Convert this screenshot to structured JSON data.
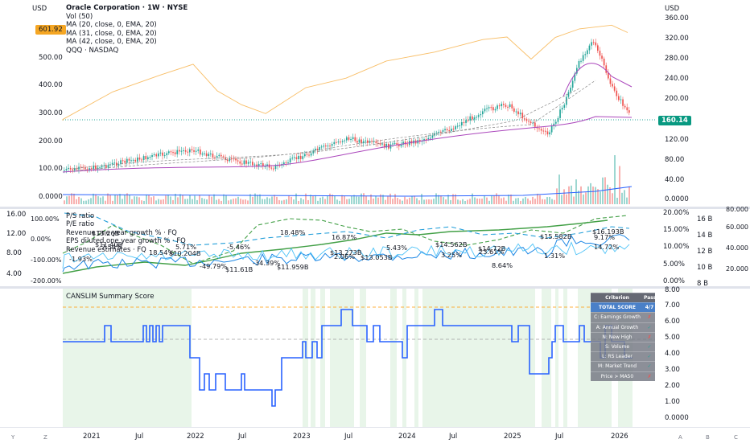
{
  "top_left_currency": "USD",
  "top_right_currency": "USD",
  "price_badge_left": "601.92",
  "price_badge_right": "160.14",
  "legend_main": {
    "title": "Oracle Corporation · 1W · NYSE",
    "lines": [
      "Vol (50)",
      "MA (20, close, 0, EMA, 20)",
      "MA (31, close, 0, EMA, 20)",
      "MA (42, close, 0, EMA, 20)",
      "QQQ · NASDAQ"
    ]
  },
  "left_axis_main": [
    "500.00",
    "400.00",
    "300.00",
    "200.00",
    "100.00",
    "0.0000"
  ],
  "right_axis_main": [
    "360.00",
    "320.00",
    "280.00",
    "240.00",
    "200.00",
    "160.00",
    "120.00",
    "80.00",
    "40.00",
    "0.0000"
  ],
  "legend_fund": {
    "lines": [
      "P/S ratio",
      "P/E ratio",
      "Revenue one year growth % · FQ",
      "EPS diluted one year growth % · FQ",
      "Revenue estimates · FQ"
    ]
  },
  "fund_left_axis_a": [
    "16.00",
    "12.00",
    "8.00",
    "4.00"
  ],
  "fund_left_axis_b": [
    "100.00%",
    "0.00%",
    "-100.00%",
    "-200.00%"
  ],
  "fund_right_axis_a": [
    "20.00%",
    "15.00%",
    "10.00%",
    "5.00%",
    "0.00%"
  ],
  "fund_right_axis_b": [
    "16 B",
    "14 B",
    "12 B",
    "10 B",
    "8 B"
  ],
  "fund_right_axis_c": [
    "80.000",
    "60.000",
    "40.000",
    "20.000"
  ],
  "fund_annotations": [
    "$13.26B",
    "$11.40B",
    "-1.93%",
    "7.54%",
    "18.54%",
    "5.71%",
    "$10.204B",
    "-49.79%",
    "$11.61B",
    "-5.46%",
    "-34.39%",
    "$11.959B",
    "18.48%",
    "2.06%",
    "$13.273B",
    "16.87%",
    "$13.053B",
    "5.43%",
    "$14.562B",
    "3.25%",
    "$14.72B",
    "23.61%",
    "8.64%",
    "$15.582B",
    "1.31%",
    "$16.193B",
    "9.17%",
    "14.72%"
  ],
  "canslim": {
    "title": "CANSLIM Summary Score",
    "right_axis": [
      "8.00",
      "7.00",
      "6.00",
      "5.00",
      "4.00",
      "3.00",
      "2.00",
      "1.00",
      "0.0000"
    ],
    "table": {
      "header": [
        "Criterion",
        "Pass"
      ],
      "total": [
        "TOTAL SCORE",
        "4/7"
      ],
      "rows": [
        [
          "C: Earnings Growth",
          "✗"
        ],
        [
          "A: Annual Growth",
          "✓"
        ],
        [
          "N: New High",
          "✗"
        ],
        [
          "S: Volume",
          "✓"
        ],
        [
          "L: RS Leader",
          "✓"
        ],
        [
          "M: Market Trend",
          "✓"
        ],
        [
          "Price > MA50",
          "✗"
        ]
      ]
    }
  },
  "time_axis": [
    "2021",
    "Jul",
    "2022",
    "Jul",
    "2023",
    "Jul",
    "2024",
    "Jul",
    "2025",
    "Jul",
    "2026"
  ],
  "bottom_toolbar": [
    "Y",
    "Z",
    "A",
    "B",
    "C"
  ],
  "colors": {
    "up": "#26a69a",
    "down": "#ef5350",
    "qqq": "#f7b34c",
    "ma": "#ab47bc",
    "score": "#2962ff",
    "green_band": "#e8f5e9",
    "price_badge": "#f5a623"
  }
}
